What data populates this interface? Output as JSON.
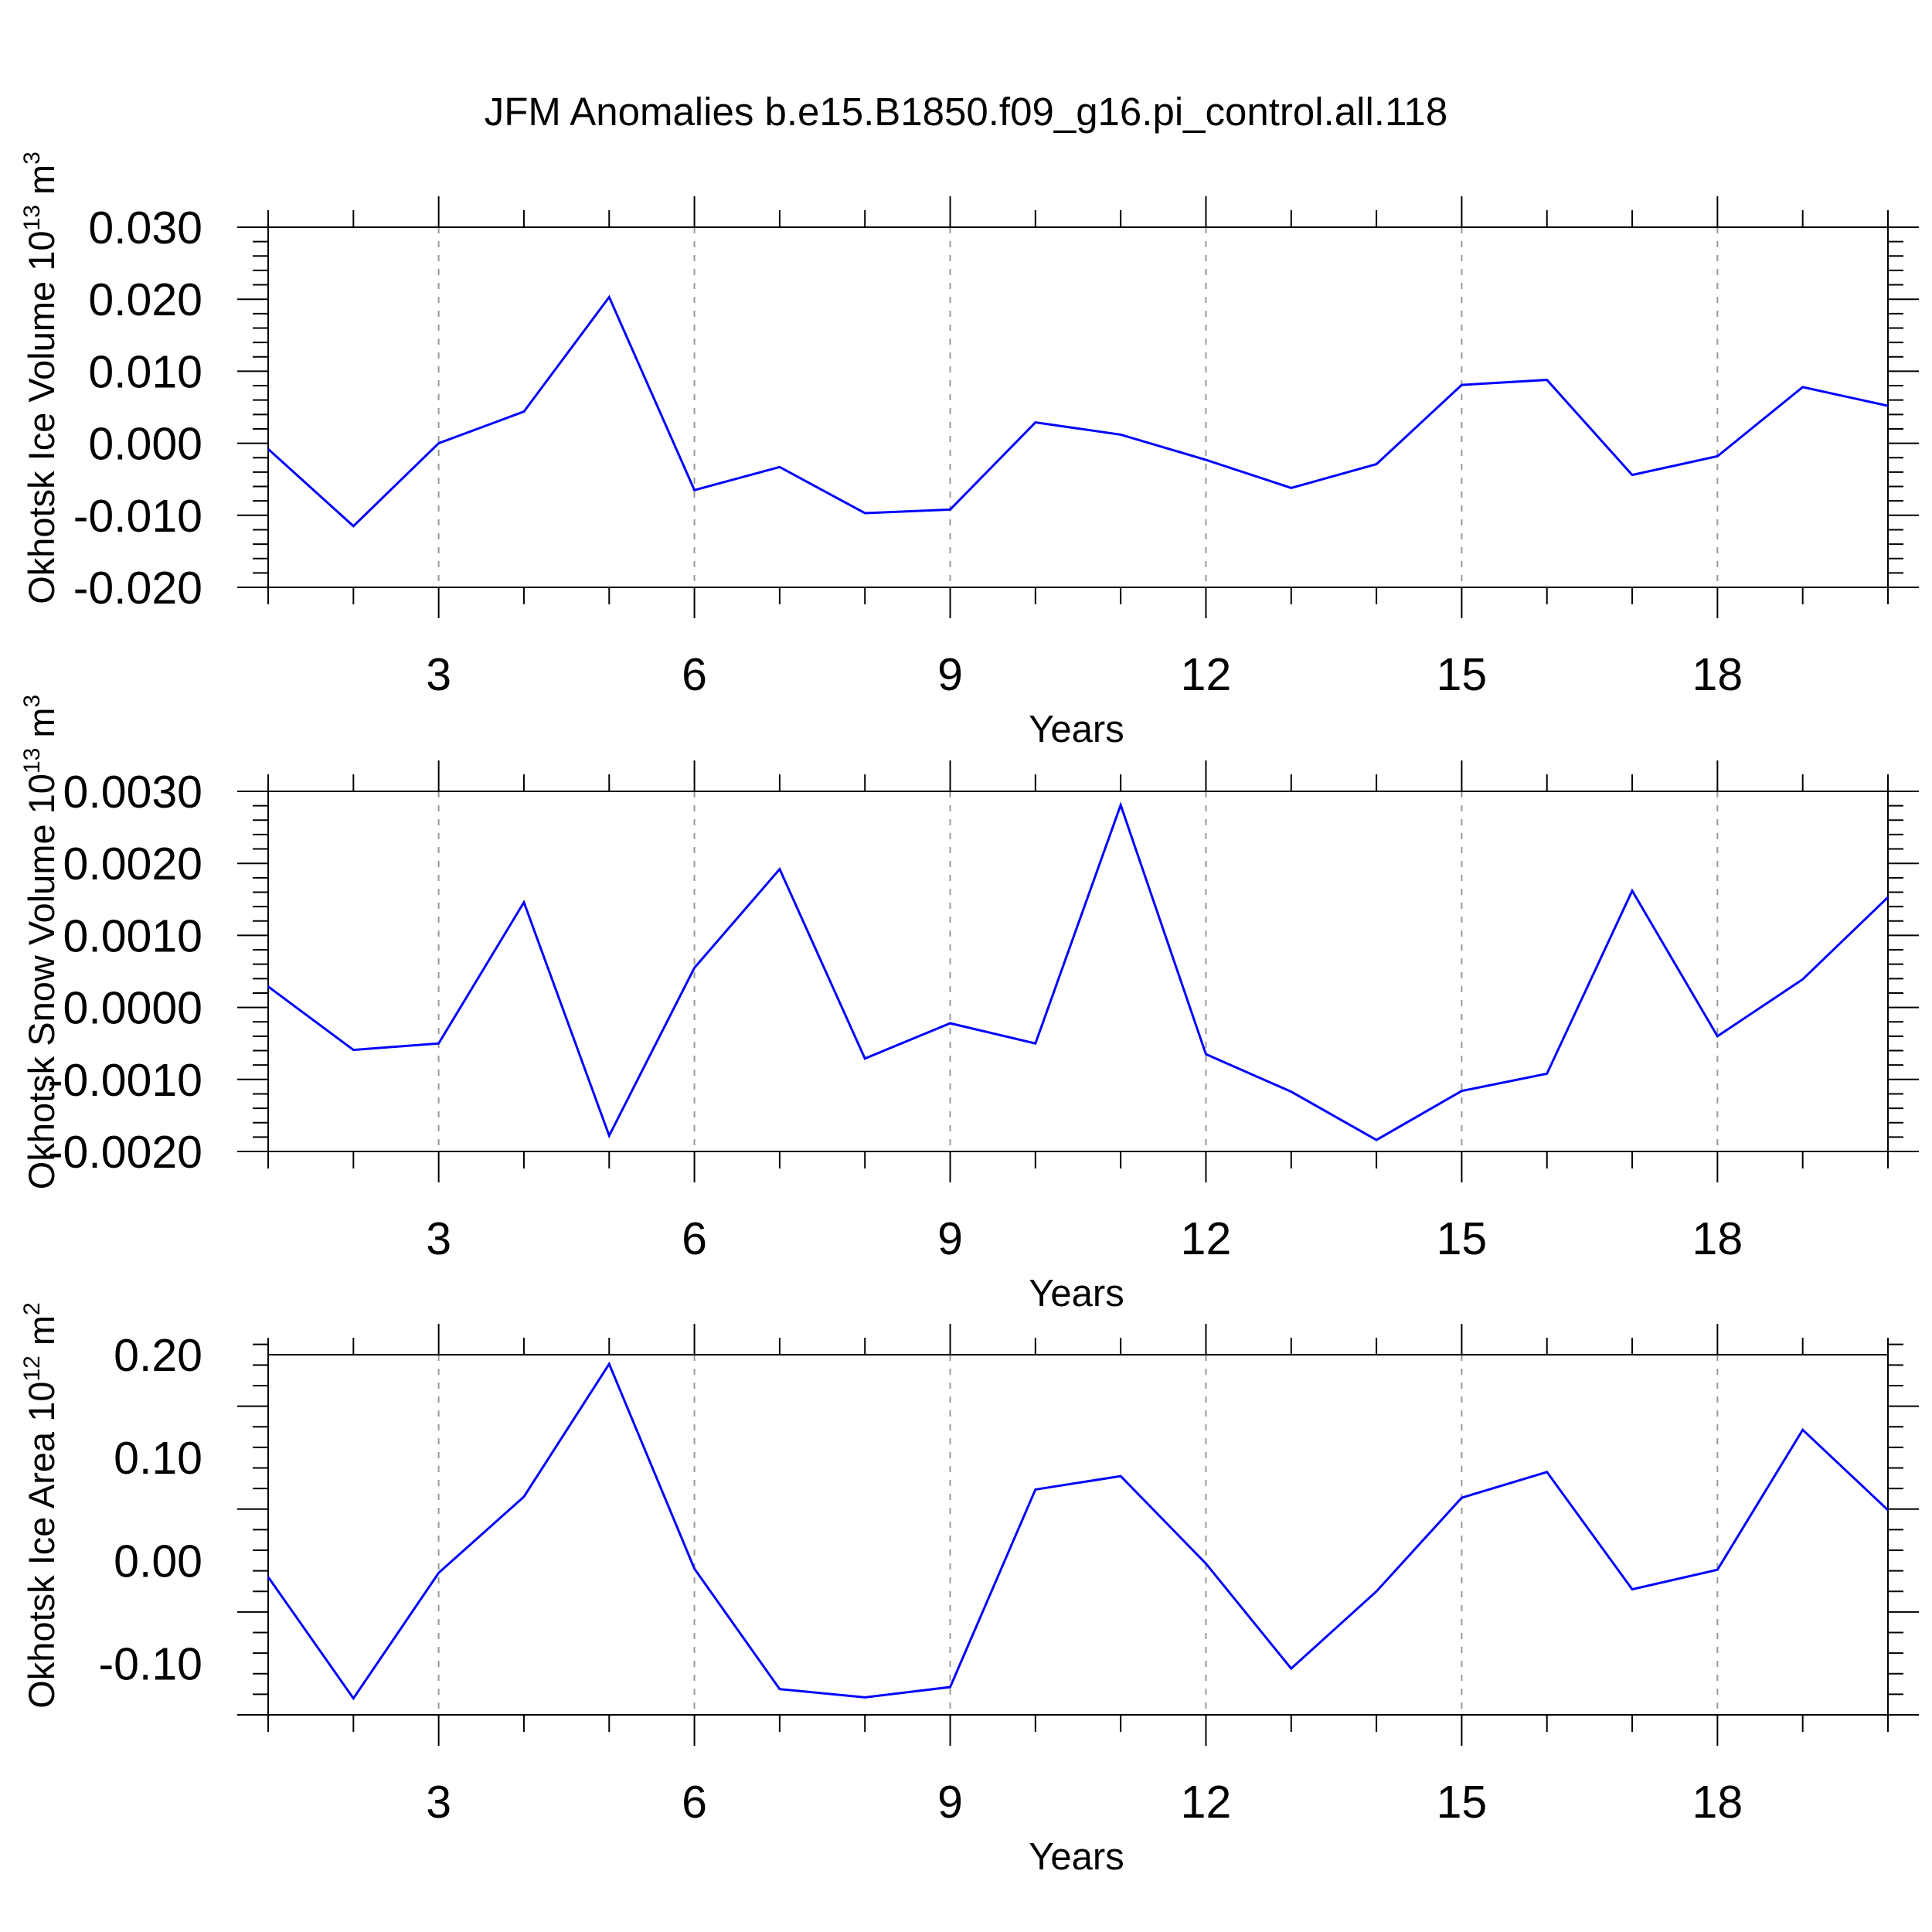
{
  "title": "JFM Anomalies b.e15.B1850.f09_g16.pi_control.all.118",
  "colors": {
    "series": "#0000ff",
    "axis": "#000000",
    "grid": "#999999"
  },
  "chart_data": [
    {
      "type": "line",
      "ylabel": "Okhotsk Ice Volume",
      "ylabel_unit": {
        "base": "10",
        "exp": "13",
        "unit": "m",
        "unit_exp": "3"
      },
      "xlabel": "Years",
      "xlim": [
        1,
        20
      ],
      "ylim": [
        -0.02,
        0.03
      ],
      "xticks": [
        "3",
        "6",
        "9",
        "12",
        "15",
        "18"
      ],
      "yticks": [
        "0.030",
        "0.020",
        "0.010",
        "0.000",
        "-0.010",
        "-0.020"
      ],
      "grid": "vertical dashed at major x ticks",
      "x": [
        1,
        2,
        3,
        4,
        5,
        6,
        7,
        8,
        9,
        10,
        11,
        12,
        13,
        14,
        15,
        16,
        17,
        18,
        19,
        20
      ],
      "values": [
        -0.0008,
        -0.0115,
        0.0,
        0.0044,
        0.0203,
        -0.0065,
        -0.0033,
        -0.0097,
        -0.0092,
        0.0029,
        0.0012,
        -0.0023,
        -0.0062,
        -0.0029,
        0.0081,
        0.0088,
        -0.0044,
        -0.0018,
        0.0078,
        0.0052
      ]
    },
    {
      "type": "line",
      "ylabel": "Okhotsk Snow Volume",
      "ylabel_unit": {
        "base": "10",
        "exp": "13",
        "unit": "m",
        "unit_exp": "3"
      },
      "xlabel": "Years",
      "xlim": [
        1,
        20
      ],
      "ylim": [
        -0.002,
        0.003
      ],
      "xticks": [
        "3",
        "6",
        "9",
        "12",
        "15",
        "18"
      ],
      "yticks": [
        "0.0030",
        "0.0020",
        "0.0010",
        "0.0000",
        "-0.0010",
        "-0.0020"
      ],
      "grid": "vertical dashed at major x ticks",
      "x": [
        1,
        2,
        3,
        4,
        5,
        6,
        7,
        8,
        9,
        10,
        11,
        12,
        13,
        14,
        15,
        16,
        17,
        18,
        19,
        20
      ],
      "values": [
        0.00029,
        -0.00059,
        -0.0005,
        0.00146,
        -0.00178,
        0.00055,
        0.00192,
        -0.00071,
        -0.00022,
        -0.0005,
        0.00281,
        -0.00065,
        -0.00117,
        -0.00184,
        -0.00116,
        -0.00092,
        0.00162,
        -0.0004,
        0.00039,
        0.00153
      ]
    },
    {
      "type": "line",
      "ylabel": "Okhotsk Ice Area",
      "ylabel_unit": {
        "base": "10",
        "exp": "12",
        "unit": "m",
        "unit_exp": "2"
      },
      "xlabel": "Years",
      "xlim": [
        1,
        20
      ],
      "ylim": [
        -0.15,
        0.2
      ],
      "xticks": [
        "3",
        "6",
        "9",
        "12",
        "15",
        "18"
      ],
      "yticks": [
        "0.20",
        "0.10",
        "0.00",
        "-0.10"
      ],
      "grid": "vertical dashed at major x ticks",
      "x": [
        1,
        2,
        3,
        4,
        5,
        6,
        7,
        8,
        9,
        10,
        11,
        12,
        13,
        14,
        15,
        16,
        17,
        18,
        19,
        20
      ],
      "values": [
        -0.016,
        -0.134,
        -0.012,
        0.062,
        0.191,
        -0.008,
        -0.125,
        -0.133,
        -0.123,
        0.069,
        0.082,
        -0.003,
        -0.105,
        -0.03,
        0.061,
        0.086,
        -0.028,
        -0.009,
        0.127,
        0.049
      ]
    }
  ]
}
